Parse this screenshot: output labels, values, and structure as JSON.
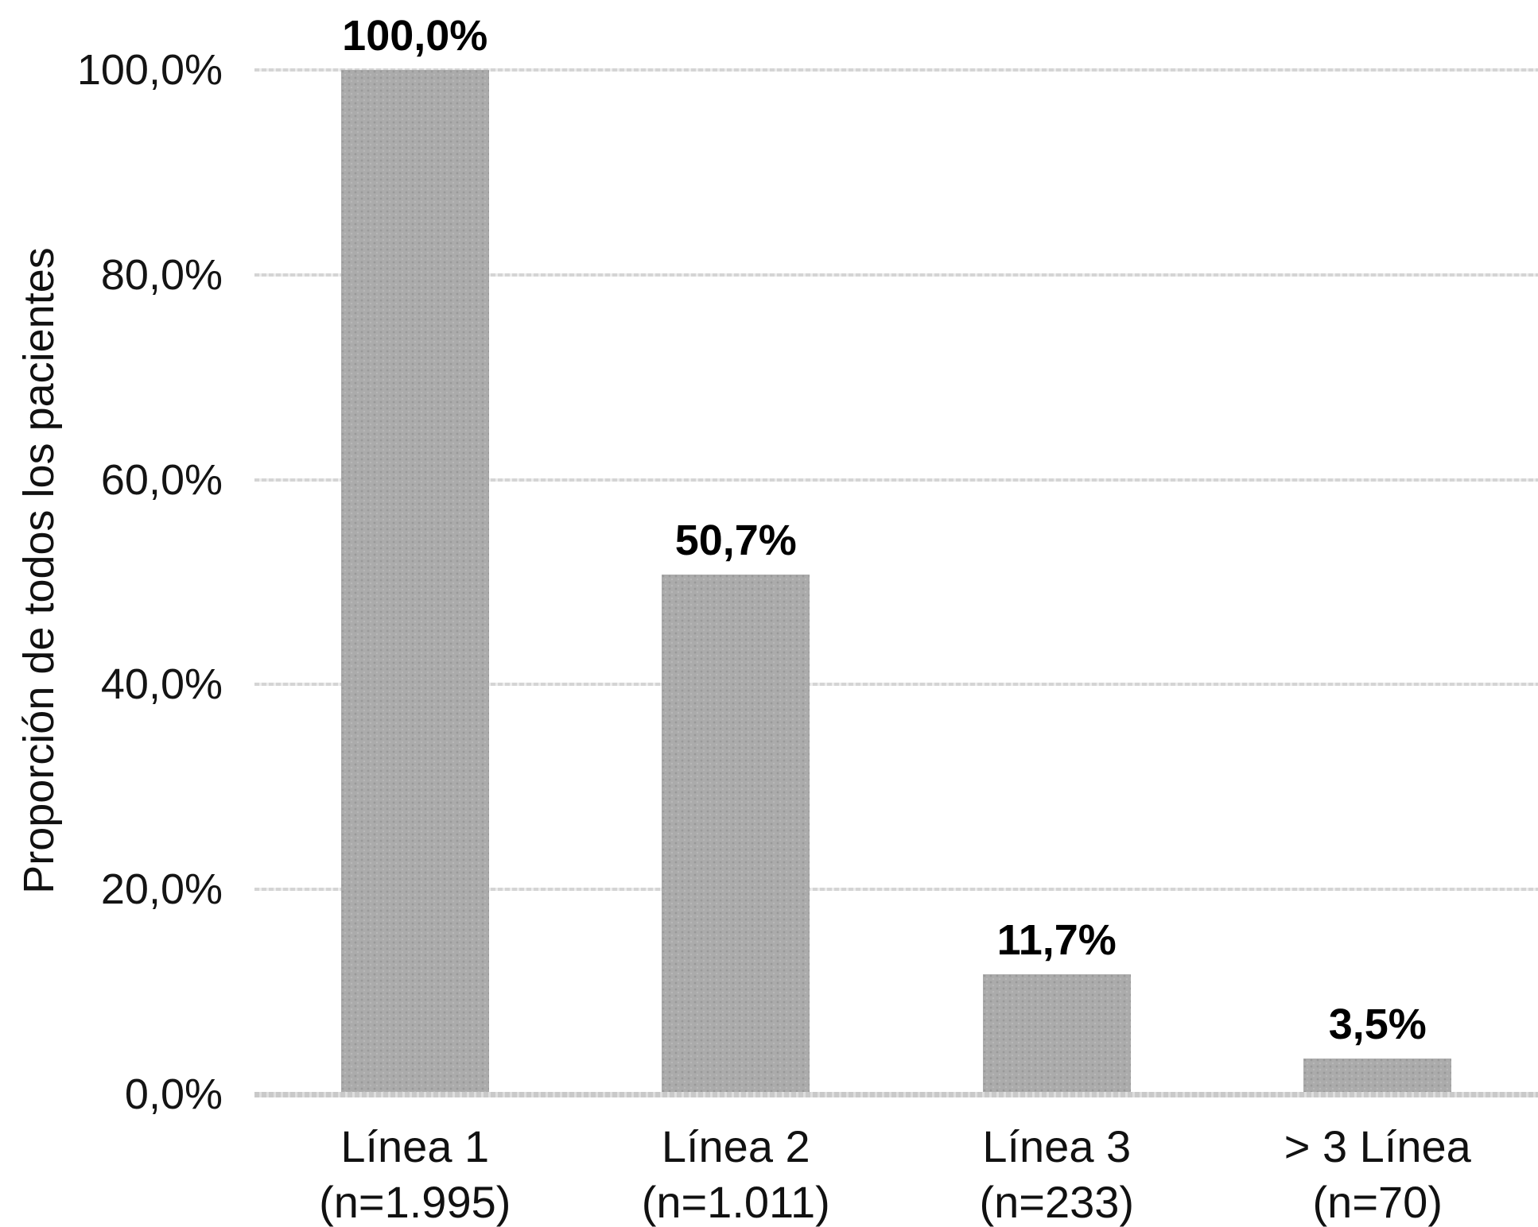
{
  "chart_data": {
    "type": "bar",
    "title": "",
    "xlabel": "",
    "ylabel": "Proporción de todos los pacientes",
    "ylim": [
      0,
      100
    ],
    "ytick_step": 20,
    "ytick_labels": [
      "0,0%",
      "20,0%",
      "40,0%",
      "60,0%",
      "80,0%",
      "100,0%"
    ],
    "categories": [
      "Línea 1",
      "Línea 2",
      "Línea 3",
      "> 3 Línea"
    ],
    "category_sublabels": [
      "(n=1.995)",
      "(n=1.011)",
      "(n=233)",
      "(n=70)"
    ],
    "values": [
      100.0,
      50.7,
      11.7,
      3.5
    ],
    "value_labels": [
      "100,0%",
      "50,7%",
      "11,7%",
      "3,5%"
    ],
    "grid": true,
    "legend": false,
    "bar_color": "#ababab",
    "gridline_color": "#d4d4d4",
    "axis_line_color": "#c9c9c9",
    "text_color": "#111111",
    "value_label_color": "#000000"
  }
}
